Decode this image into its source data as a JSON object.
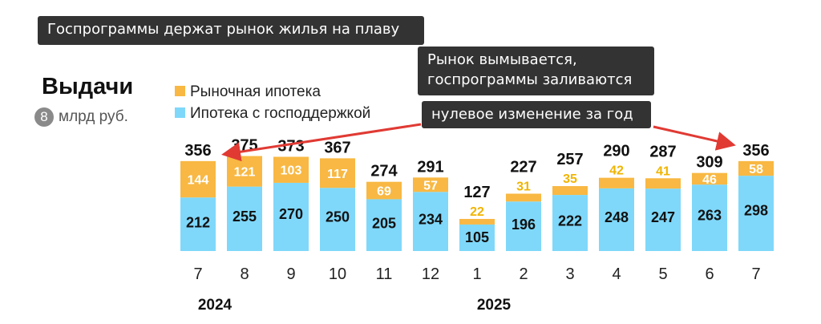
{
  "title": "Госпрограммы держат рынок жилья на плаву",
  "note_1_line1": "Рынок вымывается,",
  "note_1_line2": "госпрограммы заливаются",
  "note_2": "нулевое изменение за год",
  "colors": {
    "market": "#f8b843",
    "gov": "#7fd8fa",
    "market_label_outside": "#f0b400",
    "arrow": "#e03a33"
  },
  "chart_data": {
    "type": "bar",
    "stacked": true,
    "title": "Выдачи",
    "unit_badge": "8",
    "unit": "млрд руб.",
    "categories": [
      "7",
      "8",
      "9",
      "10",
      "11",
      "12",
      "1",
      "2",
      "3",
      "4",
      "5",
      "6",
      "7"
    ],
    "years": [
      {
        "label": "2024",
        "at_index": 0
      },
      {
        "label": "2025",
        "at_index": 6
      }
    ],
    "series": [
      {
        "name": "Ипотека с господдержкой",
        "values": [
          212,
          255,
          270,
          250,
          205,
          234,
          105,
          196,
          222,
          248,
          247,
          263,
          298
        ]
      },
      {
        "name": "Рыночная ипотека",
        "values": [
          144,
          121,
          103,
          117,
          69,
          57,
          22,
          31,
          35,
          42,
          41,
          46,
          58
        ]
      }
    ],
    "totals": [
      356,
      375,
      373,
      367,
      274,
      291,
      127,
      227,
      257,
      290,
      287,
      309,
      356
    ],
    "legend": [
      "Рыночная ипотека",
      "Ипотека с господдержкой"
    ]
  }
}
